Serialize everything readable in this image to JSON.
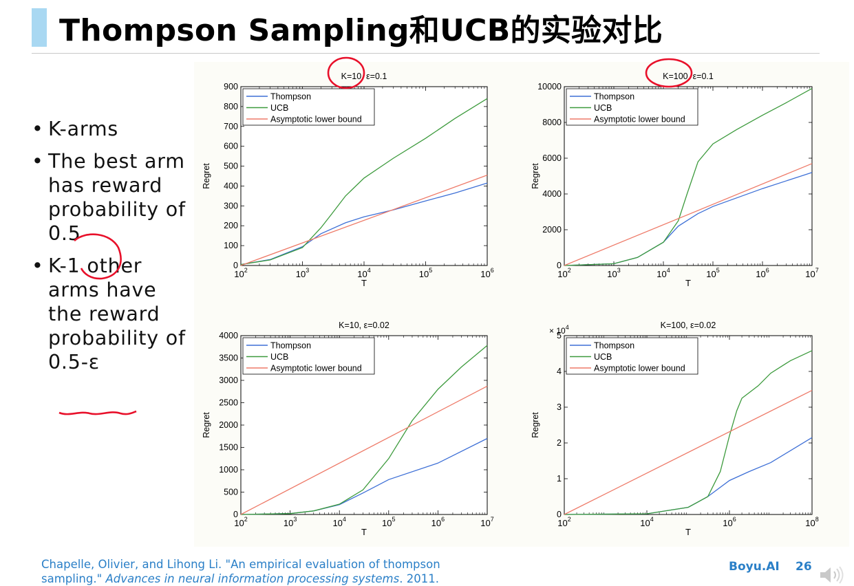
{
  "slide": {
    "title": "Thompson Sampling和UCB的实验对比",
    "bullets": [
      "K-arms",
      "The best arm has reward probability of 0.5",
      "K-1 other arms have the reward probability of 0.5-ε"
    ],
    "citation": {
      "line1": "Chapelle, Olivier, and Lihong Li. \"An empirical evaluation of thompson",
      "line2_plain": "sampling.\" ",
      "line2_italic": "Advances in neural information processing systems",
      "line2_end": ". 2011."
    },
    "brand": "Boyu.AI",
    "page_number": "26",
    "colors": {
      "accent": "#a9d8f2",
      "link": "#2a7fc7",
      "annotation": "#e8102a"
    }
  },
  "chart_data": [
    {
      "type": "line",
      "title": "K=10, ε=0.1",
      "xlabel": "T",
      "ylabel": "Regret",
      "xscale": "log",
      "xlim": [
        100,
        1000000
      ],
      "ylim": [
        0,
        900
      ],
      "yticks": [
        0,
        100,
        200,
        300,
        400,
        500,
        600,
        700,
        800,
        900
      ],
      "xtick_exps": [
        2,
        3,
        4,
        5,
        6
      ],
      "y_multiplier": "",
      "legend": "top-left",
      "series": [
        {
          "name": "Thompson",
          "color": "#3d6fd6",
          "x": [
            100,
            300,
            1000,
            2000,
            5000,
            10000,
            30000,
            100000,
            300000,
            1000000
          ],
          "y": [
            5,
            30,
            95,
            160,
            215,
            245,
            280,
            325,
            365,
            415
          ]
        },
        {
          "name": "UCB",
          "color": "#3c9a3c",
          "x": [
            100,
            300,
            1000,
            2000,
            3000,
            5000,
            10000,
            30000,
            100000,
            300000,
            1000000
          ],
          "y": [
            5,
            28,
            90,
            190,
            260,
            350,
            440,
            540,
            640,
            740,
            840
          ]
        },
        {
          "name": "Asymptotic lower bound",
          "color": "#ee7a68",
          "x": [
            100,
            1000000
          ],
          "y": [
            0,
            455
          ]
        }
      ]
    },
    {
      "type": "line",
      "title": "K=100, ε=0.1",
      "xlabel": "T",
      "ylabel": "Regret",
      "xscale": "log",
      "xlim": [
        100,
        10000000
      ],
      "ylim": [
        0,
        10000
      ],
      "yticks": [
        0,
        2000,
        4000,
        6000,
        8000,
        10000
      ],
      "xtick_exps": [
        2,
        3,
        4,
        5,
        6,
        7
      ],
      "y_multiplier": "",
      "legend": "top-left",
      "series": [
        {
          "name": "Thompson",
          "color": "#3d6fd6",
          "x": [
            100,
            1000,
            3000,
            10000,
            20000,
            50000,
            100000,
            1000000,
            10000000
          ],
          "y": [
            0,
            100,
            450,
            1300,
            2200,
            2900,
            3300,
            4300,
            5200
          ]
        },
        {
          "name": "UCB",
          "color": "#3c9a3c",
          "x": [
            100,
            1000,
            3000,
            10000,
            20000,
            30000,
            50000,
            100000,
            300000,
            1000000,
            3000000,
            10000000
          ],
          "y": [
            0,
            100,
            450,
            1300,
            2500,
            4000,
            5800,
            6800,
            7600,
            8400,
            9100,
            9900
          ]
        },
        {
          "name": "Asymptotic lower bound",
          "color": "#ee7a68",
          "x": [
            100,
            10000000
          ],
          "y": [
            0,
            5700
          ]
        }
      ]
    },
    {
      "type": "line",
      "title": "K=10, ε=0.02",
      "xlabel": "T",
      "ylabel": "Regret",
      "xscale": "log",
      "xlim": [
        100,
        10000000
      ],
      "ylim": [
        0,
        4000
      ],
      "yticks": [
        0,
        500,
        1000,
        1500,
        2000,
        2500,
        3000,
        3500,
        4000
      ],
      "xtick_exps": [
        2,
        3,
        4,
        5,
        6,
        7
      ],
      "y_multiplier": "",
      "legend": "top-left",
      "series": [
        {
          "name": "Thompson",
          "color": "#3d6fd6",
          "x": [
            100,
            1000,
            3000,
            10000,
            30000,
            100000,
            1000000,
            10000000
          ],
          "y": [
            0,
            20,
            80,
            220,
            480,
            780,
            1150,
            1700
          ]
        },
        {
          "name": "UCB",
          "color": "#3c9a3c",
          "x": [
            100,
            1000,
            3000,
            10000,
            30000,
            100000,
            300000,
            1000000,
            3000000,
            10000000
          ],
          "y": [
            0,
            20,
            80,
            230,
            550,
            1250,
            2100,
            2800,
            3300,
            3780
          ]
        },
        {
          "name": "Asymptotic lower bound",
          "color": "#ee7a68",
          "x": [
            100,
            10000000
          ],
          "y": [
            0,
            2870
          ]
        }
      ]
    },
    {
      "type": "line",
      "title": "K=100, ε=0.02",
      "xlabel": "T",
      "ylabel": "Regret",
      "xscale": "log",
      "xlim": [
        100,
        100000000
      ],
      "ylim": [
        0,
        5
      ],
      "yticks": [
        0,
        1,
        2,
        3,
        4,
        5
      ],
      "xtick_exps": [
        2,
        4,
        6,
        8
      ],
      "y_multiplier": "× 10",
      "y_multiplier_exp": "4",
      "legend": "top-left",
      "series": [
        {
          "name": "Thompson",
          "color": "#3d6fd6",
          "x": [
            100,
            10000,
            100000,
            300000,
            1000000,
            3000000,
            10000000,
            100000000
          ],
          "y": [
            0,
            0.02,
            0.2,
            0.5,
            0.95,
            1.2,
            1.45,
            2.15
          ]
        },
        {
          "name": "UCB",
          "color": "#3c9a3c",
          "x": [
            100,
            10000,
            100000,
            300000,
            600000,
            1000000,
            1500000,
            2000000,
            5000000,
            10000000,
            30000000,
            100000000
          ],
          "y": [
            0,
            0.02,
            0.2,
            0.5,
            1.2,
            2.2,
            2.9,
            3.25,
            3.6,
            3.95,
            4.3,
            4.58
          ]
        },
        {
          "name": "Asymptotic lower bound",
          "color": "#ee7a68",
          "x": [
            100,
            100000000
          ],
          "y": [
            0,
            3.47
          ]
        }
      ]
    }
  ]
}
